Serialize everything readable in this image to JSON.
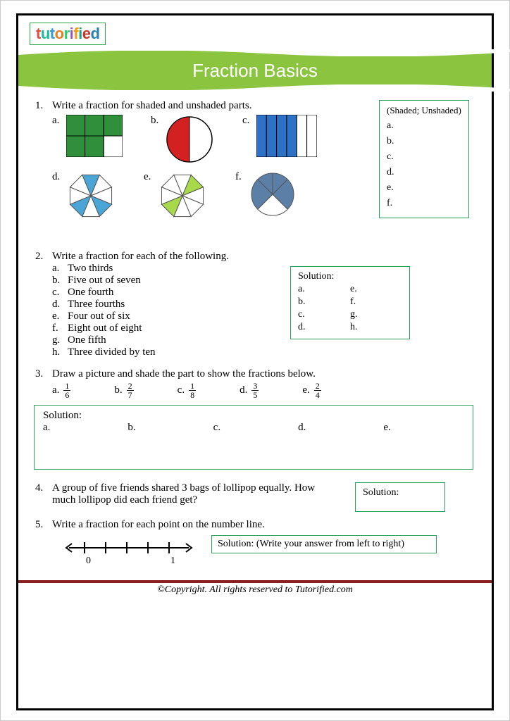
{
  "brand": {
    "text": "tutorified",
    "colors": {
      "border": "#28a745"
    }
  },
  "banner": {
    "title": "Fraction Basics",
    "bg": "#8bc53f",
    "text_color": "#ffffff",
    "fontsize": 26
  },
  "q1": {
    "num": "1.",
    "prompt": "Write a fraction for shaded and unshaded parts.",
    "items": [
      "a.",
      "b.",
      "c.",
      "d.",
      "e.",
      "f."
    ],
    "answer_header": "(Shaded; Unshaded)",
    "answer_labels": [
      "a.",
      "b.",
      "c.",
      "d.",
      "e.",
      "f."
    ],
    "shapes": {
      "a": {
        "type": "grid",
        "rows": 2,
        "cols": 3,
        "fill": "#2f8f3a",
        "stroke": "#000",
        "unshaded_cells": [
          [
            1,
            2
          ]
        ]
      },
      "b": {
        "type": "pie",
        "slices": 2,
        "fill": [
          "#d32020",
          "#ffffff"
        ],
        "stroke": "#000"
      },
      "c": {
        "type": "bars",
        "count": 6,
        "filled": 4,
        "fill": "#2e72c8",
        "stroke": "#000"
      },
      "d": {
        "type": "octagon",
        "slices": 8,
        "filled_idx": [
          0,
          3,
          5
        ],
        "fill": "#4aa6d6",
        "empty": "#ffffff",
        "stroke": "#555"
      },
      "e": {
        "type": "octagon",
        "slices": 8,
        "filled_idx": [
          1,
          5
        ],
        "fill": "#a7d94a",
        "empty": "#ffffff",
        "stroke": "#555"
      },
      "f": {
        "type": "pie",
        "slices": 4,
        "filled_idx": [
          0,
          1,
          2
        ],
        "fill": "#5b7fa6",
        "empty": "#ffffff",
        "stroke": "#555"
      }
    }
  },
  "q2": {
    "num": "2.",
    "prompt": "Write a fraction for each of the following.",
    "items": [
      {
        "l": "a.",
        "t": "Two thirds"
      },
      {
        "l": "b.",
        "t": "Five out of seven"
      },
      {
        "l": "c.",
        "t": "One fourth"
      },
      {
        "l": "d.",
        "t": "Three fourths"
      },
      {
        "l": "e.",
        "t": "Four out of six"
      },
      {
        "l": "f.",
        "t": "Eight out of eight"
      },
      {
        "l": "g.",
        "t": "One fifth"
      },
      {
        "l": "h.",
        "t": "Three divided by ten"
      }
    ],
    "solution_label": "Solution:",
    "sol_col1": [
      "a.",
      "b.",
      "c.",
      "d."
    ],
    "sol_col2": [
      "e.",
      "f.",
      "g.",
      "h."
    ]
  },
  "q3": {
    "num": "3.",
    "prompt": "Draw a picture and shade the part to show the fractions below.",
    "fracs": [
      {
        "l": "a.",
        "n": "1",
        "d": "6"
      },
      {
        "l": "b.",
        "n": "2",
        "d": "7"
      },
      {
        "l": "c.",
        "n": "1",
        "d": "8"
      },
      {
        "l": "d.",
        "n": "3",
        "d": "5"
      },
      {
        "l": "e.",
        "n": "2",
        "d": "4"
      }
    ],
    "solution_label": "Solution:",
    "sol_labels": [
      "a.",
      "b.",
      "c.",
      "d.",
      "e."
    ]
  },
  "q4": {
    "num": "4.",
    "prompt": "A group of five friends shared 3 bags of lollipop equally. How much lollipop did each friend get?",
    "solution_label": "Solution:"
  },
  "q5": {
    "num": "5.",
    "prompt": "Write a fraction for each point on the number line.",
    "numline": {
      "start": "0",
      "end": "1",
      "ticks": 5
    },
    "solution_label": "Solution: (Write your answer from left to right)"
  },
  "footer": {
    "rule_color": "#8b2020",
    "text": "©Copyright. All rights reserved to Tutorified.com"
  },
  "box_border": "#2ca05a"
}
